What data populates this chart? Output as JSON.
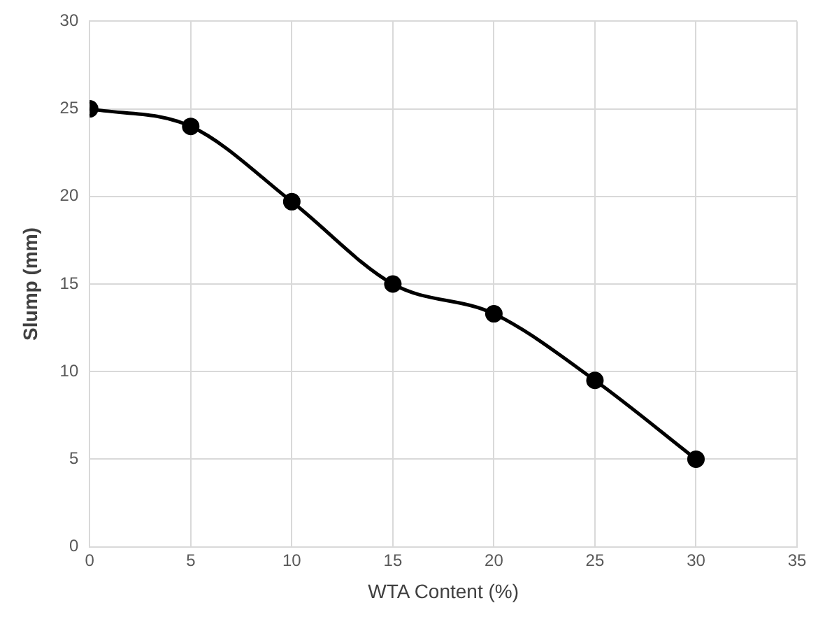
{
  "chart_data": {
    "type": "line",
    "xlabel": "WTA Content (%)",
    "ylabel": "Slump (mm)",
    "x": [
      0,
      5,
      10,
      15,
      20,
      25,
      30
    ],
    "series": [
      {
        "color": "#000000",
        "values": [
          25,
          24,
          19.7,
          15,
          13.3,
          9.5,
          5
        ]
      }
    ],
    "xlim": [
      0,
      35
    ],
    "xticks": [
      0,
      5,
      10,
      15,
      20,
      25,
      30,
      35
    ],
    "ylim": [
      0,
      30
    ],
    "yticks": [
      0,
      5,
      10,
      15,
      20,
      25,
      30
    ],
    "grid": true,
    "marker": "circle",
    "line_style": "solid",
    "legend": false
  }
}
